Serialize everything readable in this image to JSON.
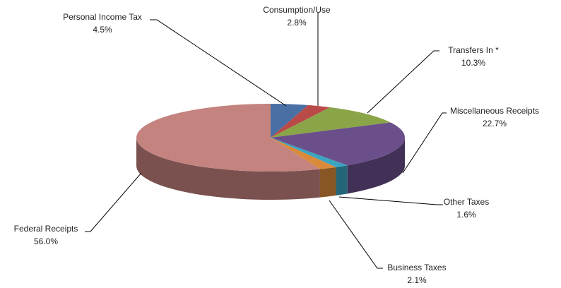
{
  "chart_data": {
    "type": "pie",
    "categories": [
      "Personal Income Tax",
      "Consumption/Use",
      "Transfers In *",
      "Miscellaneous Receipts",
      "Other Taxes",
      "Business Taxes",
      "Federal Receipts"
    ],
    "values": [
      4.5,
      2.8,
      10.3,
      22.7,
      1.6,
      2.1,
      56.0
    ],
    "value_labels": [
      "4.5%",
      "2.8%",
      "10.3%",
      "22.7%",
      "1.6%",
      "2.1%",
      "56.0%"
    ],
    "colors": [
      "#4a6fa5",
      "#b94a48",
      "#8aa448",
      "#6b4f8a",
      "#3aa5c0",
      "#d98a3a",
      "#c4837f"
    ]
  }
}
